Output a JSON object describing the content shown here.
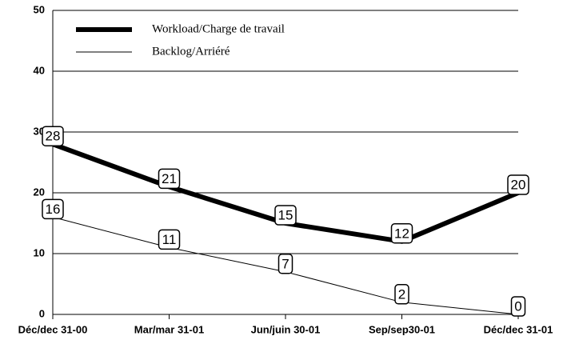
{
  "chart_data": {
    "type": "line",
    "categories": [
      "Déc/dec 31-00",
      "Mar/mar 31-01",
      "Jun/juin 30-01",
      "Sep/sep30-01",
      "Déc/dec 31-01"
    ],
    "series": [
      {
        "name": "Workload/Charge de travail",
        "color": "#000000",
        "width": 6,
        "values": [
          28,
          21,
          15,
          12,
          20
        ]
      },
      {
        "name": "Backlog/Arriéré",
        "color": "#000000",
        "width": 1,
        "values": [
          16,
          11,
          7,
          2,
          0
        ]
      }
    ],
    "ylim": [
      0,
      50
    ],
    "yticks": [
      0,
      10,
      20,
      30,
      40,
      50
    ],
    "grid": true,
    "legend": "upper left"
  }
}
